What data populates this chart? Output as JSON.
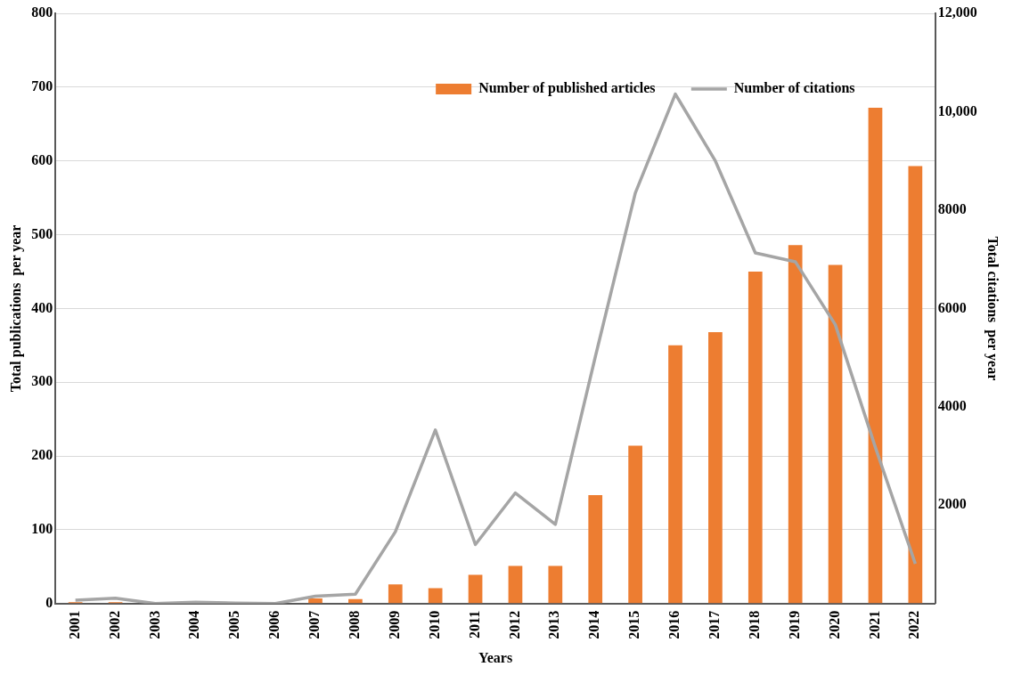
{
  "chart_data": {
    "type": "bar",
    "xlabel": "Years",
    "ylabel": "Total publications  per year",
    "y2label": "Total citations  per year",
    "categories": [
      "2001",
      "2002",
      "2003",
      "2004",
      "2005",
      "2006",
      "2007",
      "2008",
      "2009",
      "2010",
      "2011",
      "2012",
      "2013",
      "2014",
      "2015",
      "2016",
      "2017",
      "2018",
      "2019",
      "2020",
      "2021",
      "2022"
    ],
    "series": [
      {
        "name": "Number of published articles",
        "color": "#ed7d31",
        "values": [
          2,
          2,
          0,
          null,
          null,
          null,
          7,
          6,
          26,
          21,
          39,
          51,
          51,
          147,
          214,
          350,
          368,
          450,
          486,
          459,
          672,
          593
        ]
      },
      {
        "name": "Number of citations",
        "type": "line",
        "axis": "y2",
        "color": "#a5a5a5",
        "values": [
          70,
          110,
          0,
          30,
          10,
          0,
          150,
          190,
          1460,
          3530,
          1200,
          2250,
          1610,
          5020,
          8350,
          10360,
          9000,
          7130,
          6950,
          5670,
          3180,
          810
        ]
      }
    ],
    "ylim": [
      0,
      800
    ],
    "yticks": [
      0,
      100,
      200,
      300,
      400,
      500,
      600,
      700,
      800
    ],
    "y2lim": [
      0,
      12000
    ],
    "y2ticks": [
      2000,
      4000,
      6000,
      8000,
      {
        "value": 10000,
        "label": "10,000"
      },
      {
        "value": 12000,
        "label": "12,000"
      }
    ],
    "grid": "y",
    "legend": "top right",
    "marker": "none",
    "line_style": "solid"
  }
}
